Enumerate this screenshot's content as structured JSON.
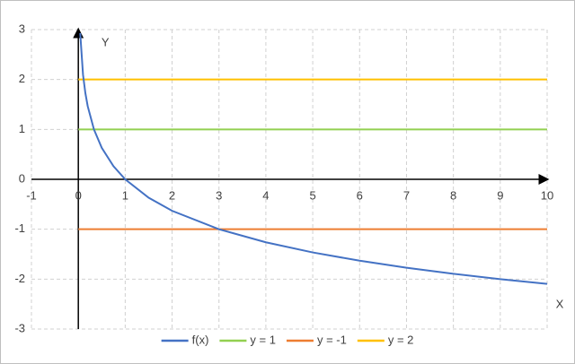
{
  "chart_data": {
    "type": "line",
    "x_label": "X",
    "y_label": "Y",
    "xlim": [
      -1,
      10
    ],
    "ylim": [
      -3,
      3
    ],
    "xticks": [
      -1,
      0,
      1,
      2,
      3,
      4,
      5,
      6,
      7,
      8,
      9,
      10
    ],
    "yticks": [
      -3,
      -2,
      -1,
      0,
      1,
      2,
      3
    ],
    "grid": true,
    "legend": "bottom",
    "series": [
      {
        "name": "f(x)",
        "color": "#4472c4",
        "x": [
          0.04,
          0.1,
          0.15,
          0.2,
          0.333,
          0.5,
          0.75,
          1,
          1.5,
          2,
          3,
          4,
          5,
          6,
          7,
          8,
          9,
          10
        ],
        "values": [
          2.93,
          2.096,
          1.727,
          1.465,
          1.0,
          0.631,
          0.262,
          0,
          -0.369,
          -0.631,
          -1,
          -1.262,
          -1.465,
          -1.631,
          -1.771,
          -1.893,
          -2,
          -2.096
        ]
      },
      {
        "name": "y = 1",
        "color": "#92d050",
        "x": [
          0,
          10
        ],
        "values": [
          1,
          1
        ]
      },
      {
        "name": "y = -1",
        "color": "#ed7d31",
        "x": [
          0,
          10
        ],
        "values": [
          -1,
          -1
        ]
      },
      {
        "name": "y = 2",
        "color": "#ffc000",
        "x": [
          0,
          10
        ],
        "values": [
          2,
          2
        ]
      }
    ]
  }
}
